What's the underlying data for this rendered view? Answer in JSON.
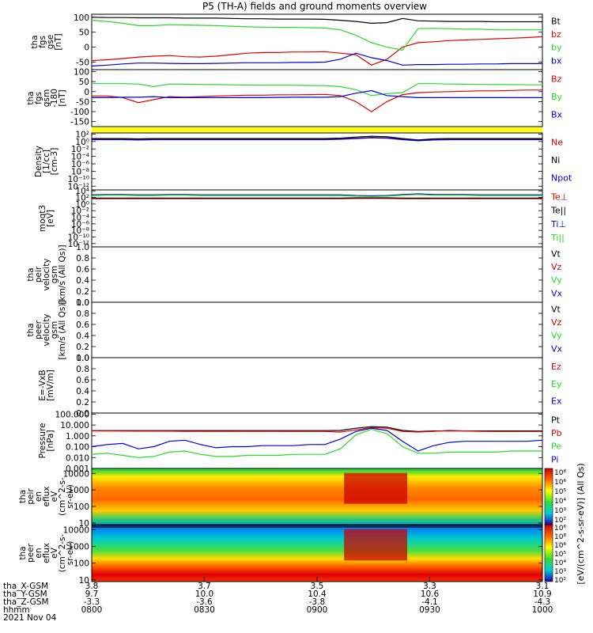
{
  "title": "P5 (TH-A) fields and ground moments overview",
  "colors": {
    "black": "#000000",
    "red": "#dd0000",
    "green": "#22dd22",
    "blue": "#0000dd",
    "yellow": "#ffff00"
  },
  "chart_data": [
    {
      "type": "line",
      "panel": "fgs_gse",
      "ylabel": [
        "tha",
        "fgs",
        "gse",
        "[nT]"
      ],
      "ylim": [
        -75,
        110
      ],
      "yticks": [
        "100",
        "50",
        "0",
        "-50"
      ],
      "yticks_v": [
        100,
        50,
        0,
        -50
      ],
      "series": [
        {
          "name": "Bt",
          "color": "#000000",
          "values": [
            100,
            99,
            99,
            98,
            98,
            98,
            97,
            97,
            97,
            96,
            95,
            95,
            94,
            94,
            94,
            93,
            90,
            86,
            80,
            82,
            96,
            88,
            87,
            86,
            86,
            86,
            85,
            85,
            85,
            85
          ]
        },
        {
          "name": "bz",
          "color": "#dd0000",
          "values": [
            -45,
            -42,
            -38,
            -33,
            -30,
            -28,
            -32,
            -33,
            -30,
            -25,
            -20,
            -18,
            -18,
            -16,
            -16,
            -15,
            -20,
            -25,
            -60,
            -40,
            0,
            15,
            18,
            22,
            24,
            26,
            28,
            30,
            32,
            35
          ]
        },
        {
          "name": "by",
          "color": "#22dd22",
          "values": [
            90,
            86,
            80,
            72,
            72,
            75,
            74,
            73,
            72,
            70,
            68,
            67,
            66,
            66,
            65,
            64,
            58,
            40,
            15,
            0,
            -10,
            62,
            63,
            62,
            60,
            60,
            58,
            58,
            58,
            58
          ]
        },
        {
          "name": "bx",
          "color": "#0000dd",
          "values": [
            -63,
            -60,
            -56,
            -53,
            -53,
            -54,
            -55,
            -55,
            -54,
            -53,
            -52,
            -52,
            -52,
            -51,
            -51,
            -50,
            -40,
            -20,
            -35,
            -45,
            -60,
            -58,
            -58,
            -57,
            -57,
            -56,
            -56,
            -55,
            -55,
            -55
          ]
        }
      ]
    },
    {
      "type": "line",
      "panel": "fgs_gsm",
      "ylabel": [
        "tha",
        "fgs",
        "gsm",
        "-180",
        "[nT]"
      ],
      "ylim": [
        -175,
        110
      ],
      "yticks": [
        "100",
        "50",
        "0",
        "-50",
        "-100",
        "-150"
      ],
      "yticks_v": [
        100,
        50,
        0,
        -50,
        -100,
        -150
      ],
      "series": [
        {
          "name": "Bz",
          "color": "#dd0000",
          "values": [
            -22,
            -22,
            -30,
            -55,
            -40,
            -25,
            -28,
            -25,
            -22,
            -20,
            -18,
            -18,
            -16,
            -16,
            -15,
            -14,
            -20,
            -50,
            -100,
            -50,
            -15,
            -5,
            -2,
            0,
            2,
            4,
            4,
            6,
            8,
            8
          ]
        },
        {
          "name": "By",
          "color": "#22dd22",
          "values": [
            40,
            40,
            40,
            38,
            25,
            38,
            37,
            36,
            35,
            34,
            33,
            32,
            32,
            32,
            31,
            30,
            25,
            10,
            -20,
            -10,
            -5,
            40,
            40,
            38,
            37,
            36,
            35,
            35,
            34,
            34
          ]
        },
        {
          "name": "Bx",
          "color": "#0000dd",
          "values": [
            -30,
            -30,
            -28,
            -28,
            -25,
            -30,
            -30,
            -30,
            -30,
            -30,
            -30,
            -30,
            -29,
            -28,
            -28,
            -28,
            -25,
            -8,
            5,
            -20,
            -25,
            -30,
            -30,
            -30,
            -30,
            -30,
            -30,
            -30,
            -30,
            -30
          ]
        }
      ]
    },
    {
      "type": "bar",
      "panel": "mode_bar",
      "bar_color": "#ffff00"
    },
    {
      "type": "line",
      "panel": "density",
      "ylabel": [
        "Density",
        "[1/cc]",
        "[cm-3]"
      ],
      "scale": "log",
      "ylim_exp": [
        -13,
        2.3
      ],
      "yticks": [
        "10²",
        "10⁰",
        "10⁻²",
        "10⁻⁴",
        "10⁻⁶",
        "10⁻⁸",
        "10⁻¹⁰",
        "10⁻¹²"
      ],
      "yticks_v": [
        2,
        0,
        -2,
        -4,
        -6,
        -8,
        -10,
        -12
      ],
      "series": [
        {
          "name": "Ne",
          "color": "#dd0000",
          "values_log10": [
            0.6,
            0.6,
            0.6,
            0.5,
            0.6,
            0.6,
            0.6,
            0.6,
            0.6,
            0.6,
            0.6,
            0.6,
            0.6,
            0.6,
            0.6,
            0.6,
            0.7,
            0.9,
            1.1,
            1.0,
            0.6,
            0.3,
            0.5,
            0.6,
            0.6,
            0.6,
            0.6,
            0.6,
            0.6,
            0.6
          ]
        },
        {
          "name": "Ni",
          "color": "#000000",
          "values_log10": [
            0.8,
            0.8,
            0.8,
            0.7,
            0.8,
            0.8,
            0.8,
            0.8,
            0.8,
            0.8,
            0.8,
            0.8,
            0.8,
            0.8,
            0.8,
            0.8,
            0.9,
            1.2,
            1.4,
            1.3,
            0.8,
            0.4,
            0.7,
            0.8,
            0.8,
            0.8,
            0.8,
            0.8,
            0.8,
            0.8
          ]
        },
        {
          "name": "Npot",
          "color": "#0000dd",
          "values_log10": [
            0.5,
            0.5,
            0.5,
            0.4,
            0.5,
            0.5,
            0.5,
            0.5,
            0.5,
            0.5,
            0.5,
            0.5,
            0.5,
            0.5,
            0.5,
            0.5,
            0.6,
            0.8,
            1.0,
            0.9,
            0.5,
            0.2,
            0.4,
            0.5,
            0.5,
            0.5,
            0.5,
            0.5,
            0.5,
            0.5
          ]
        }
      ]
    },
    {
      "type": "line",
      "panel": "temperature",
      "ylabel": [
        "moqt3",
        "[eV]"
      ],
      "scale": "log",
      "ylim_exp": [
        -13,
        4.3
      ],
      "yticks": [
        "10⁴",
        "10²",
        "10⁰",
        "10⁻²",
        "10⁻⁴",
        "10⁻⁶",
        "10⁻⁸",
        "10⁻¹⁰",
        "10⁻¹²"
      ],
      "yticks_v": [
        4,
        2,
        0,
        -2,
        -4,
        -6,
        -8,
        -10,
        -12
      ],
      "series": [
        {
          "name": "Te⊥",
          "color": "#dd0000",
          "values_log10": [
            1.6,
            1.6,
            1.6,
            1.6,
            1.6,
            1.6,
            1.6,
            1.6,
            1.6,
            1.6,
            1.6,
            1.6,
            1.6,
            1.6,
            1.6,
            1.6,
            1.6,
            1.7,
            1.7,
            1.7,
            1.6,
            1.6,
            1.6,
            1.6,
            1.6,
            1.6,
            1.6,
            1.6,
            1.6,
            1.6
          ]
        },
        {
          "name": "Te||",
          "color": "#000000",
          "values_log10": [
            1.8,
            1.8,
            1.8,
            1.8,
            1.8,
            1.8,
            1.8,
            1.8,
            1.8,
            1.8,
            1.8,
            1.8,
            1.8,
            1.8,
            1.8,
            1.8,
            1.8,
            1.9,
            1.9,
            1.9,
            1.8,
            1.8,
            1.8,
            1.8,
            1.8,
            1.8,
            1.8,
            1.8,
            1.8,
            1.8
          ]
        },
        {
          "name": "Ti⊥",
          "color": "#0000dd",
          "values_log10": [
            2.8,
            2.9,
            2.9,
            2.8,
            2.8,
            2.9,
            2.9,
            2.8,
            2.8,
            2.8,
            2.8,
            2.8,
            2.8,
            2.8,
            2.8,
            2.8,
            2.8,
            2.6,
            2.5,
            2.6,
            2.9,
            3.1,
            2.9,
            2.9,
            2.9,
            2.8,
            2.8,
            2.8,
            2.8,
            2.8
          ]
        },
        {
          "name": "Ti||",
          "color": "#22dd22",
          "values_log10": [
            2.6,
            2.7,
            2.7,
            2.6,
            2.6,
            2.7,
            2.7,
            2.6,
            2.6,
            2.6,
            2.6,
            2.6,
            2.6,
            2.6,
            2.6,
            2.6,
            2.6,
            2.4,
            2.3,
            2.4,
            2.7,
            2.9,
            2.7,
            2.7,
            2.7,
            2.6,
            2.6,
            2.6,
            2.6,
            2.6
          ]
        }
      ]
    },
    {
      "type": "line",
      "panel": "peir_velocity",
      "ylabel": [
        "tha",
        "peir",
        "velocity",
        "gsm",
        "[km/s (All Qs)]"
      ],
      "ylim": [
        0,
        1
      ],
      "yticks": [
        "1.0",
        "0.8",
        "0.6",
        "0.4",
        "0.2",
        "0.0"
      ],
      "yticks_v": [
        1.0,
        0.8,
        0.6,
        0.4,
        0.2,
        0.0
      ],
      "series": [
        {
          "name": "Vt",
          "color": "#000000",
          "values": []
        },
        {
          "name": "Vz",
          "color": "#dd0000",
          "values": []
        },
        {
          "name": "Vy",
          "color": "#22dd22",
          "values": []
        },
        {
          "name": "Vx",
          "color": "#0000dd",
          "values": []
        }
      ]
    },
    {
      "type": "line",
      "panel": "peer_velocity",
      "ylabel": [
        "tha",
        "peer",
        "velocity",
        "gsm",
        "[km/s (All Qs)]"
      ],
      "ylim": [
        0,
        1
      ],
      "yticks": [
        "1.0",
        "0.8",
        "0.6",
        "0.4",
        "0.2",
        "0.0"
      ],
      "yticks_v": [
        1.0,
        0.8,
        0.6,
        0.4,
        0.2,
        0.0
      ],
      "series": [
        {
          "name": "Vt",
          "color": "#000000",
          "values": []
        },
        {
          "name": "Vz",
          "color": "#dd0000",
          "values": []
        },
        {
          "name": "Vy",
          "color": "#22dd22",
          "values": []
        },
        {
          "name": "Vx",
          "color": "#0000dd",
          "values": []
        }
      ]
    },
    {
      "type": "line",
      "panel": "efield",
      "ylabel": [
        "E=-VxB",
        "[mV/m]"
      ],
      "ylim": [
        0,
        1
      ],
      "yticks": [
        "1.0",
        "0.8",
        "0.6",
        "0.4",
        "0.2",
        "0.0"
      ],
      "yticks_v": [
        1.0,
        0.8,
        0.6,
        0.4,
        0.2,
        0.0
      ],
      "series": [
        {
          "name": "Ez",
          "color": "#dd0000",
          "values": []
        },
        {
          "name": "Ey",
          "color": "#22dd22",
          "values": []
        },
        {
          "name": "Ex",
          "color": "#0000dd",
          "values": []
        }
      ]
    },
    {
      "type": "line",
      "panel": "pressure",
      "ylabel": [
        "Pressure",
        "[nPa]"
      ],
      "scale": "log",
      "ylim_exp": [
        -3,
        2.1
      ],
      "yticks": [
        "100.000",
        "10.000",
        "1.000",
        "0.100",
        "0.010",
        "0.001"
      ],
      "yticks_v": [
        2,
        1,
        0,
        -1,
        -2,
        -3
      ],
      "series": [
        {
          "name": "Pt",
          "color": "#000000",
          "values_log10": [
            0.48,
            0.48,
            0.48,
            0.48,
            0.48,
            0.48,
            0.48,
            0.48,
            0.48,
            0.48,
            0.48,
            0.48,
            0.48,
            0.48,
            0.48,
            0.48,
            0.5,
            0.7,
            0.85,
            0.8,
            0.5,
            0.4,
            0.45,
            0.45,
            0.45,
            0.45,
            0.45,
            0.45,
            0.45,
            0.45
          ]
        },
        {
          "name": "Pb",
          "color": "#dd0000",
          "values_log10": [
            0.45,
            0.45,
            0.44,
            0.43,
            0.43,
            0.43,
            0.42,
            0.42,
            0.42,
            0.42,
            0.41,
            0.41,
            0.41,
            0.4,
            0.4,
            0.4,
            0.35,
            0.55,
            0.75,
            0.7,
            0.4,
            0.35,
            0.42,
            0.5,
            0.45,
            0.42,
            0.4,
            0.4,
            0.4,
            0.4
          ]
        },
        {
          "name": "Pe",
          "color": "#22dd22",
          "values_log10": [
            -1.7,
            -1.6,
            -1.8,
            -2.0,
            -1.9,
            -1.5,
            -1.4,
            -1.7,
            -1.9,
            -1.9,
            -1.8,
            -1.8,
            -1.8,
            -1.7,
            -1.7,
            -1.7,
            -1.2,
            0.1,
            0.6,
            0.2,
            -1.0,
            -1.6,
            -1.6,
            -1.5,
            -1.5,
            -1.5,
            -1.5,
            -1.4,
            -1.4,
            -1.4
          ]
        },
        {
          "name": "Pi",
          "color": "#0000dd",
          "values_log10": [
            -1.0,
            -0.8,
            -0.7,
            -1.2,
            -1.0,
            -0.5,
            -0.4,
            -0.8,
            -1.1,
            -1.0,
            -1.0,
            -0.9,
            -0.9,
            -0.9,
            -0.8,
            -0.8,
            -0.3,
            0.4,
            0.7,
            0.5,
            -0.5,
            -1.4,
            -0.9,
            -0.6,
            -0.5,
            -0.5,
            -0.5,
            -0.5,
            -0.5,
            -0.4
          ]
        }
      ]
    },
    {
      "type": "heatmap",
      "panel": "peir_spectrogram",
      "ylabel": [
        "tha",
        "peir",
        "en",
        "eflux",
        "eV",
        "(cm^2-s-",
        "sr-eV)"
      ],
      "scale": "log",
      "ylim_exp": [
        0.9,
        4.3
      ],
      "yticks": [
        "10000",
        "1000",
        "100",
        "10"
      ],
      "yticks_v": [
        4,
        3,
        2,
        1
      ],
      "note": "ion energy spectrogram, peak band ~1-2 keV, enhanced 0900-0920"
    },
    {
      "type": "heatmap",
      "panel": "peer_spectrogram",
      "ylabel": [
        "tha",
        "peer",
        "en",
        "eflux",
        "eV",
        "(cm^2-s-",
        "sr-eV)"
      ],
      "scale": "log",
      "ylim_exp": [
        0.9,
        4.3
      ],
      "yticks": [
        "10000",
        "1000",
        "100",
        "10"
      ],
      "yticks_v": [
        4,
        3,
        2,
        1
      ],
      "note": "electron energy spectrogram, peak band ~30 eV, enhanced 0900-0920"
    }
  ],
  "legends": [
    [
      "Bt",
      "bz",
      "by",
      "bx"
    ],
    [
      "Bz",
      "By",
      "Bx"
    ],
    [
      "Ne",
      "Ni",
      "Npot"
    ],
    [
      "Te⊥",
      "Te||",
      "Ti⊥",
      "Ti||"
    ],
    [
      "Vt",
      "Vz",
      "Vy",
      "Vx"
    ],
    [
      "Vt",
      "Vz",
      "Vy",
      "Vx"
    ],
    [
      "Ez",
      "Ey",
      "Ex"
    ],
    [
      "Pt",
      "Pb",
      "Pe",
      "Pi"
    ]
  ],
  "colorbar": {
    "label": "[eV/(cm^2-s-sr-eV)] (All Qs)",
    "ticks_top": [
      "10⁸",
      "10⁶",
      "10⁵",
      "10⁴",
      "10³",
      "10²"
    ],
    "ticks_bottom": [
      "10⁶",
      "10⁸",
      "10⁶",
      "10⁵",
      "10⁴",
      "10³",
      "10²"
    ]
  },
  "x_axis": {
    "row_labels": [
      "tha_X-GSM",
      "tha_Y-GSM",
      "tha_Z-GSM",
      "hhmm",
      "2021 Nov 04"
    ],
    "ticks": [
      {
        "x_gsm": "3.8",
        "y_gsm": "9.7",
        "z_gsm": "-3.3",
        "hhmm": "0800"
      },
      {
        "x_gsm": "3.7",
        "y_gsm": "10.0",
        "z_gsm": "-3.6",
        "hhmm": "0830"
      },
      {
        "x_gsm": "3.5",
        "y_gsm": "10.4",
        "z_gsm": "-3.8",
        "hhmm": "0900"
      },
      {
        "x_gsm": "3.3",
        "y_gsm": "10.6",
        "z_gsm": "-4.1",
        "hhmm": "0930"
      },
      {
        "x_gsm": "3.1",
        "y_gsm": "10.9",
        "z_gsm": "-4.3",
        "hhmm": "1000"
      }
    ]
  }
}
